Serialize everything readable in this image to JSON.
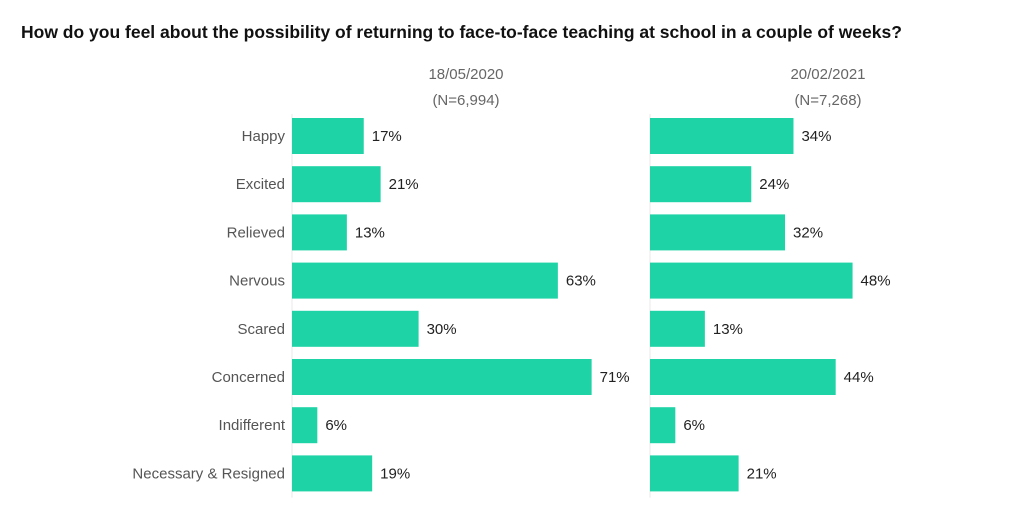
{
  "chart_data": {
    "type": "bar",
    "orientation": "horizontal",
    "title": "How do you feel about the possibility of returning to face-to-face teaching at school in a couple of weeks?",
    "categories": [
      "Happy",
      "Excited",
      "Relieved",
      "Nervous",
      "Scared",
      "Concerned",
      "Indifferent",
      "Necessary & Resigned"
    ],
    "series": [
      {
        "name": "18/05/2020",
        "subtitle": "(N=6,994)",
        "values": [
          17,
          21,
          13,
          63,
          30,
          71,
          6,
          19
        ]
      },
      {
        "name": "20/02/2021",
        "subtitle": "(N=7,268)",
        "values": [
          34,
          24,
          32,
          48,
          13,
          44,
          6,
          21
        ]
      }
    ],
    "value_suffix": "%",
    "xlim": [
      0,
      100
    ],
    "grid": false,
    "bar_color": "#1ed3a5"
  }
}
